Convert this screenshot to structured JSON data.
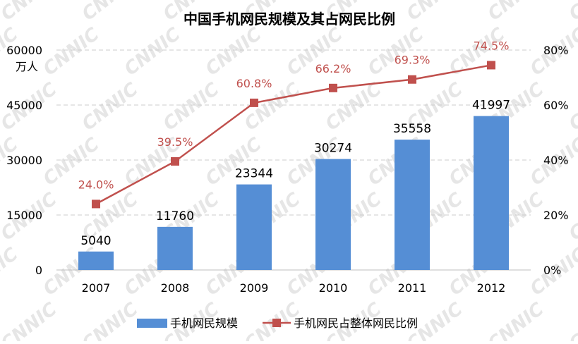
{
  "watermark": "CNNIC",
  "chart_data": {
    "type": "bar",
    "title": "中国手机网民规模及其占网民比例",
    "categories": [
      "2007",
      "2008",
      "2009",
      "2010",
      "2011",
      "2012"
    ],
    "series": [
      {
        "name": "手机网民规模",
        "type": "bar",
        "axis": "left",
        "color": "#558ED5",
        "values": [
          5040,
          11760,
          23344,
          30274,
          35558,
          41997
        ]
      },
      {
        "name": "手机网民占整体网民比例",
        "type": "line",
        "axis": "right",
        "color": "#C0504D",
        "values": [
          24.0,
          39.5,
          60.8,
          66.2,
          69.3,
          74.5
        ],
        "labels": [
          "24.0%",
          "39.5%",
          "60.8%",
          "66.2%",
          "69.3%",
          "74.5%"
        ]
      }
    ],
    "left_axis": {
      "unit": "万人",
      "ylim": [
        0,
        60000
      ],
      "ticks": [
        "0",
        "15000",
        "30000",
        "45000",
        "60000"
      ]
    },
    "right_axis": {
      "ylim": [
        0,
        80
      ],
      "ticks": [
        "0%",
        "20%",
        "40%",
        "60%",
        "80%"
      ]
    },
    "grid": "horizontal dashed",
    "legend_position": "bottom"
  }
}
